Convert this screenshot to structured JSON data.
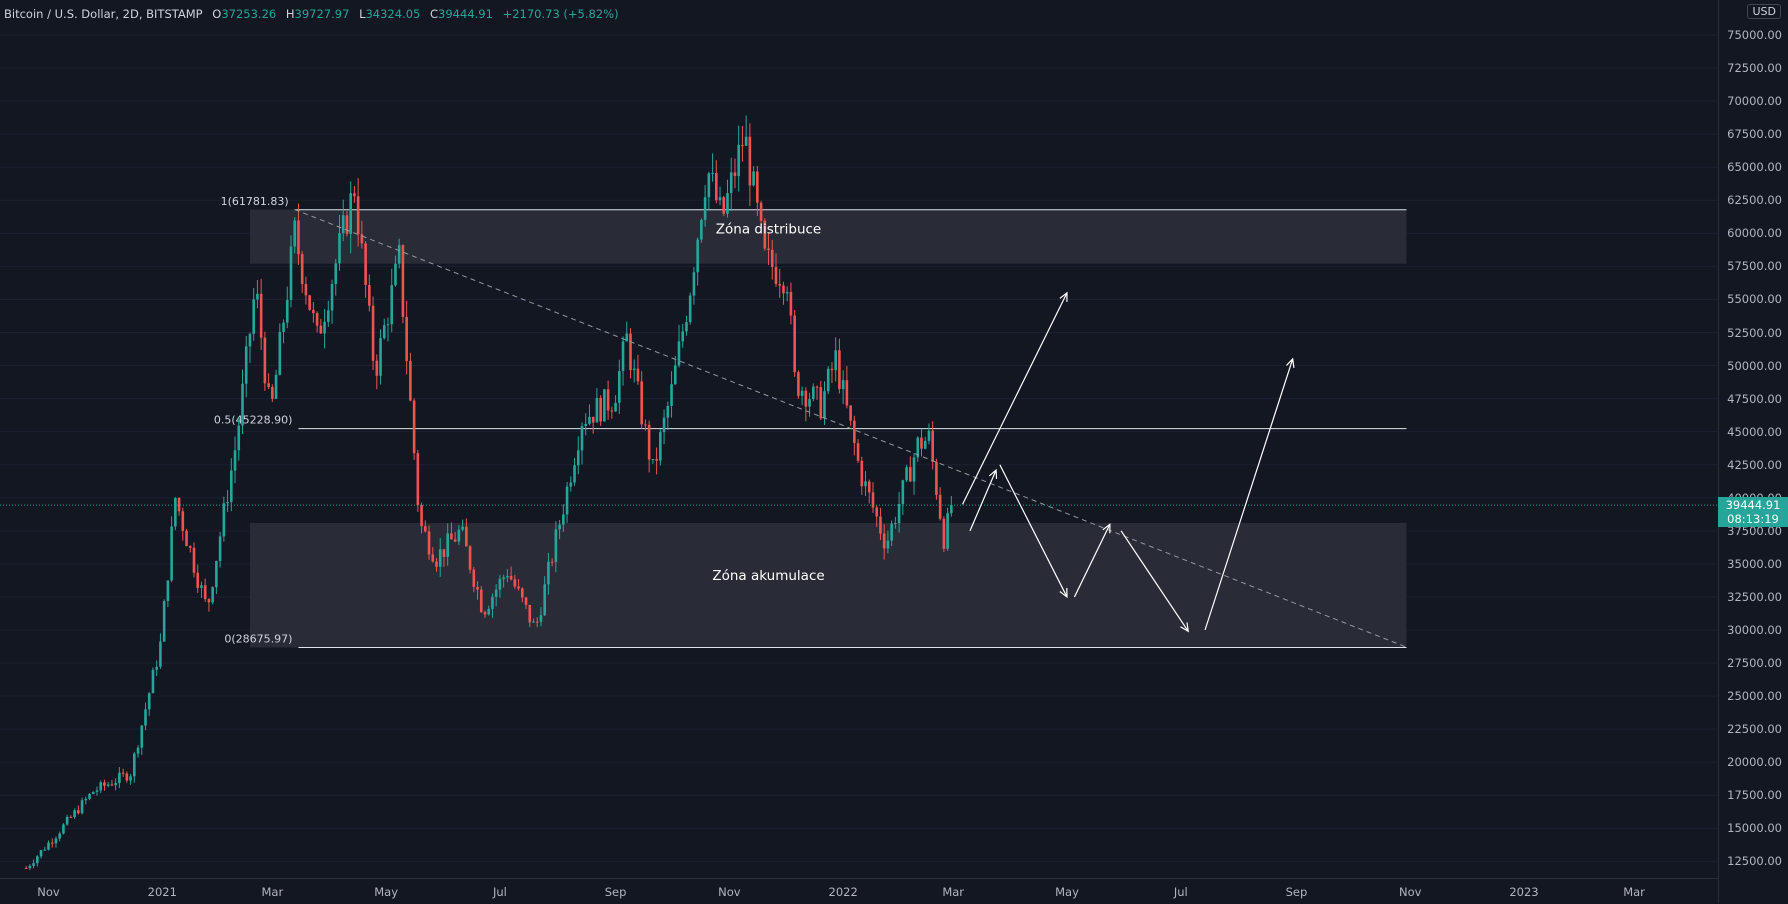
{
  "header": {
    "symbol": "Bitcoin / U.S. Dollar, 2D, BITSTAMP",
    "open_label": "O",
    "open": "37253.26",
    "high_label": "H",
    "high": "39727.97",
    "low_label": "L",
    "low": "34324.05",
    "close_label": "C",
    "close": "39444.91",
    "change": "+2170.73 (+5.82%)"
  },
  "price_axis": {
    "currency": "USD",
    "last_price": "39444.91",
    "countdown": "08:13:19"
  },
  "colors": {
    "background": "#131722",
    "up": "#26a69a",
    "down": "#ef5350",
    "zone": "#2a2d38",
    "annotation": "#ffffff"
  },
  "chart_data": {
    "type": "candlestick",
    "ylim": [
      12000,
      75000
    ],
    "xlim": [
      "2020-10-06",
      "2023-04-15"
    ],
    "y_ticks": [
      "12500.00",
      "15000.00",
      "17500.00",
      "20000.00",
      "22500.00",
      "25000.00",
      "27500.00",
      "30000.00",
      "32500.00",
      "35000.00",
      "37500.00",
      "40000.00",
      "42500.00",
      "45000.00",
      "47500.00",
      "50000.00",
      "52500.00",
      "55000.00",
      "57500.00",
      "60000.00",
      "62500.00",
      "65000.00",
      "67500.00",
      "70000.00",
      "72500.00",
      "75000.00"
    ],
    "x_ticks": [
      {
        "label": "Nov",
        "date": "2020-11-01"
      },
      {
        "label": "2021",
        "date": "2021-01-01"
      },
      {
        "label": "Mar",
        "date": "2021-03-01"
      },
      {
        "label": "May",
        "date": "2021-05-01"
      },
      {
        "label": "Jul",
        "date": "2021-07-01"
      },
      {
        "label": "Sep",
        "date": "2021-09-01"
      },
      {
        "label": "Nov",
        "date": "2021-11-01"
      },
      {
        "label": "2022",
        "date": "2022-01-01"
      },
      {
        "label": "Mar",
        "date": "2022-03-01"
      },
      {
        "label": "May",
        "date": "2022-05-01"
      },
      {
        "label": "Jul",
        "date": "2022-07-01"
      },
      {
        "label": "Sep",
        "date": "2022-09-01"
      },
      {
        "label": "Nov",
        "date": "2022-11-01"
      },
      {
        "label": "2023",
        "date": "2023-01-01"
      },
      {
        "label": "Mar",
        "date": "2023-03-01"
      }
    ],
    "price_path": [
      [
        "2020-10-20",
        12000
      ],
      [
        "2020-11-05",
        14500
      ],
      [
        "2020-11-25",
        17800
      ],
      [
        "2020-12-15",
        19200
      ],
      [
        "2020-12-31",
        28900
      ],
      [
        "2021-01-08",
        40000
      ],
      [
        "2021-01-25",
        31500
      ],
      [
        "2021-02-10",
        44500
      ],
      [
        "2021-02-20",
        56000
      ],
      [
        "2021-02-28",
        46000
      ],
      [
        "2021-03-13",
        60000
      ],
      [
        "2021-03-25",
        52000
      ],
      [
        "2021-04-14",
        63500
      ],
      [
        "2021-04-25",
        49500
      ],
      [
        "2021-05-08",
        58000
      ],
      [
        "2021-05-19",
        38000
      ],
      [
        "2021-05-28",
        35500
      ],
      [
        "2021-06-10",
        37500
      ],
      [
        "2021-06-22",
        31500
      ],
      [
        "2021-07-05",
        34500
      ],
      [
        "2021-07-20",
        30000
      ],
      [
        "2021-08-05",
        40000
      ],
      [
        "2021-08-14",
        46000
      ],
      [
        "2021-08-31",
        47500
      ],
      [
        "2021-09-07",
        52000
      ],
      [
        "2021-09-21",
        42000
      ],
      [
        "2021-10-01",
        48000
      ],
      [
        "2021-10-10",
        55000
      ],
      [
        "2021-10-20",
        65000
      ],
      [
        "2021-10-28",
        61000
      ],
      [
        "2021-11-09",
        67500
      ],
      [
        "2021-11-20",
        58000
      ],
      [
        "2021-12-03",
        56500
      ],
      [
        "2021-12-05",
        49000
      ],
      [
        "2021-12-20",
        47000
      ],
      [
        "2021-12-28",
        50500
      ],
      [
        "2022-01-10",
        42000
      ],
      [
        "2022-01-24",
        36500
      ],
      [
        "2022-02-10",
        44000
      ],
      [
        "2022-02-16",
        44500
      ],
      [
        "2022-02-24",
        37000
      ],
      [
        "2022-03-01",
        39444.91
      ]
    ],
    "levels": [
      {
        "label": "1(61781.83)",
        "value": 61781.83
      },
      {
        "label": "0.5(45228.90)",
        "value": 45228.9
      },
      {
        "label": "0(28675.97)",
        "value": 28675.97
      }
    ],
    "zones": [
      {
        "label": "Zóna distribuce",
        "from": 57700,
        "to": 61800,
        "x0": "2021-02-17",
        "x1": "2022-10-30"
      },
      {
        "label": "Zóna akumulace",
        "from": 28675.97,
        "to": 38100,
        "x0": "2021-02-17",
        "x1": "2022-10-30"
      }
    ],
    "trendline": {
      "from": [
        "2021-03-13",
        61800
      ],
      "to": [
        "2022-10-30",
        28700
      ]
    },
    "annotations": [
      {
        "label": "Zóna distribuce",
        "x": "2021-11-22",
        "y": 60000
      },
      {
        "label": "Zóna akumulace",
        "x": "2021-11-22",
        "y": 33800
      }
    ],
    "arrows": [
      [
        [
          "2022-03-06",
          39500
        ],
        [
          "2022-05-01",
          55500
        ]
      ],
      [
        [
          "2022-03-10",
          37500
        ],
        [
          "2022-03-24",
          42100
        ]
      ],
      [
        [
          "2022-03-26",
          42500
        ],
        [
          "2022-05-01",
          32500
        ]
      ],
      [
        [
          "2022-05-05",
          32500
        ],
        [
          "2022-05-24",
          38000
        ]
      ],
      [
        [
          "2022-05-30",
          37500
        ],
        [
          "2022-07-05",
          29900
        ]
      ],
      [
        [
          "2022-07-14",
          30000
        ],
        [
          "2022-08-30",
          50500
        ]
      ]
    ]
  }
}
